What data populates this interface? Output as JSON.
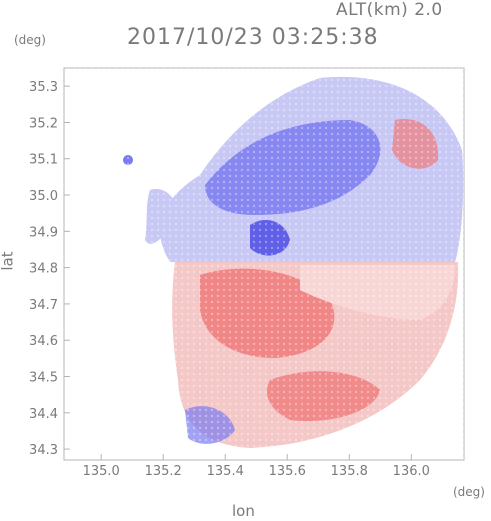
{
  "header": {
    "altitude_label": "ALT(km) 2.0",
    "timestamp": "2017/10/23 03:25:38"
  },
  "axes": {
    "y_unit": "(deg)",
    "x_unit": "(deg)",
    "x_title": "lon",
    "y_title": "lat",
    "x_ticks": [
      "135.0",
      "135.2",
      "135.4",
      "135.6",
      "135.8",
      "136.0"
    ],
    "y_ticks": [
      "35.3",
      "35.2",
      "35.1",
      "35.0",
      "34.9",
      "34.8",
      "34.7",
      "34.6",
      "34.5",
      "34.4",
      "34.3"
    ]
  },
  "chart_data": {
    "type": "heatmap",
    "title": "2017/10/23 03:25:38",
    "xlabel": "lon",
    "ylabel": "lat",
    "xlim": [
      134.88,
      136.17
    ],
    "ylim": [
      34.27,
      35.35
    ],
    "colors": {
      "approaching": "#7b7bf0",
      "receding": "#f07a7a",
      "light_blue": "#c8c8f5",
      "light_red": "#f5c8c8",
      "frame": "#b4b4b4"
    }
  }
}
